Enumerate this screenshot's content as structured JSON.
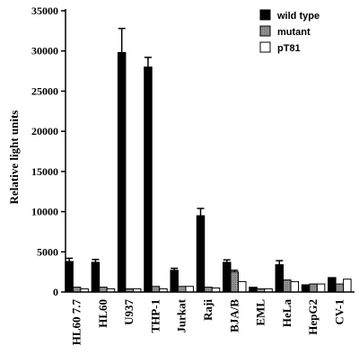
{
  "chart_data": {
    "type": "bar",
    "title": "",
    "xlabel": "",
    "ylabel": "Relative light units",
    "ylim": [
      0,
      35000
    ],
    "yticks": [
      0,
      5000,
      10000,
      15000,
      20000,
      25000,
      30000,
      35000
    ],
    "grid": false,
    "legend_position": "top-right",
    "categories": [
      "HL60 7.7",
      "HL60",
      "U937",
      "THP-1",
      "Jurkat",
      "Raji",
      "BJA/B",
      "EML",
      "HeLa",
      "HepG2",
      "CV-1"
    ],
    "series": [
      {
        "name": "wild type",
        "color": "#000000",
        "pattern": "solid",
        "values": [
          3800,
          3700,
          29800,
          28000,
          2700,
          9500,
          3700,
          600,
          3400,
          900,
          1800
        ],
        "errors": [
          400,
          350,
          3000,
          1200,
          250,
          900,
          300,
          0,
          500,
          0,
          0
        ]
      },
      {
        "name": "mutant",
        "color": "#888888",
        "pattern": "dotted-gray",
        "values": [
          600,
          600,
          400,
          700,
          700,
          600,
          2500,
          400,
          1500,
          1000,
          1000
        ],
        "errors": [
          0,
          0,
          0,
          0,
          0,
          0,
          200,
          0,
          0,
          0,
          0
        ]
      },
      {
        "name": "pT81",
        "color": "#ffffff",
        "pattern": "white",
        "values": [
          400,
          400,
          400,
          400,
          700,
          500,
          1300,
          400,
          1300,
          1000,
          1600
        ],
        "errors": [
          0,
          0,
          0,
          0,
          0,
          0,
          0,
          0,
          0,
          0,
          0
        ]
      }
    ]
  }
}
